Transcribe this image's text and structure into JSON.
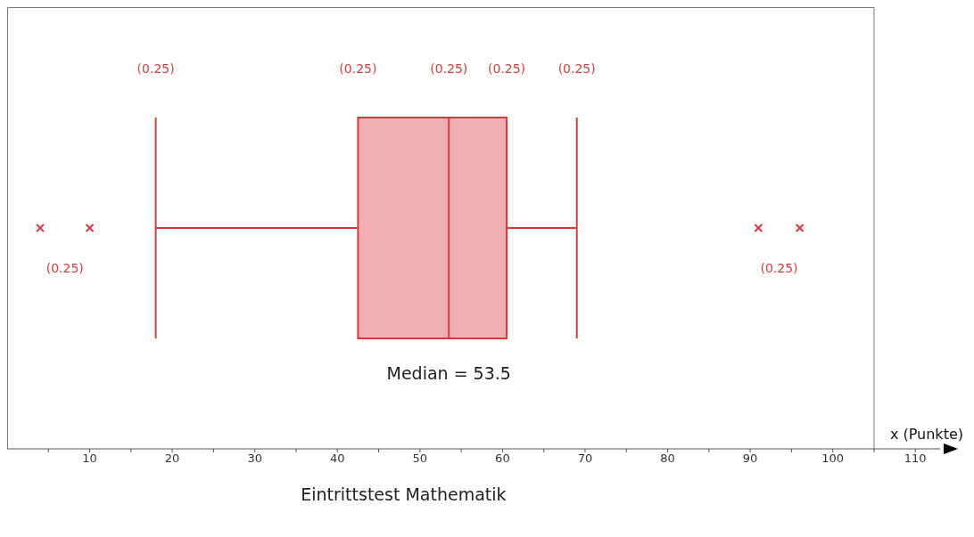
{
  "chart_data": {
    "type": "box",
    "orientation": "horizontal",
    "title": "Eintrittstest Mathematik",
    "xlabel": "x (Punkte)",
    "categories": [
      null
    ],
    "color": "#d93a40",
    "boxes": [
      {
        "low": 18,
        "q1": 42.5,
        "median": 53.5,
        "q3": 60.5,
        "high": 69,
        "outliers": [
          4,
          10,
          91,
          96
        ]
      }
    ],
    "xlim": [
      0,
      113
    ],
    "xticks": [
      {
        "value": 5,
        "label": null
      },
      10,
      {
        "value": 15,
        "label": null
      },
      20,
      {
        "value": 25,
        "label": null
      },
      30,
      {
        "value": 35,
        "label": null
      },
      40,
      {
        "value": 45,
        "label": null
      },
      50,
      {
        "value": 55,
        "label": null
      },
      60,
      {
        "value": 65,
        "label": null
      },
      70,
      {
        "value": 75,
        "label": null
      },
      80,
      {
        "value": 85,
        "label": null
      },
      90,
      {
        "value": 95,
        "label": null
      },
      100,
      {
        "value": 105,
        "label": null
      },
      110
    ],
    "annotations": [
      "(0.25)",
      "(0.25)",
      "(0.25)",
      "(0.25)",
      "(0.25)",
      "(0.25)",
      "(0.25)",
      "Median = 53.5"
    ],
    "grid": false,
    "legend": false
  }
}
